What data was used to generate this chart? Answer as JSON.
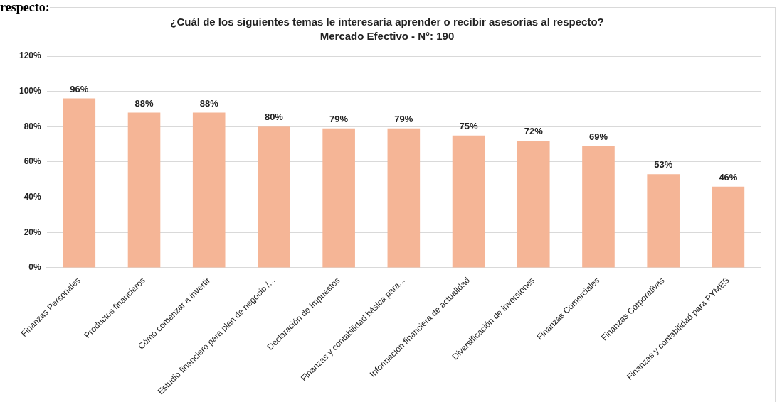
{
  "chart_data": {
    "type": "bar",
    "title": "¿Cuál de los siguientes temas le interesaría aprender o recibir asesorías al respecto?",
    "subtitle": "Mercado Efectivo - N°: 190",
    "annotations": [
      "respecto:"
    ],
    "categories": [
      "Finanzas Personales",
      "Productos financieros",
      "Cómo comenzar a invertir",
      "Estudio financiero para plan de negocio /...",
      "Declaración de Impuestos",
      "Finanzas y contabilidad básica para...",
      "Información financiera de actualidad",
      "Diversificación de inversiones",
      "Finanzas Comerciales",
      "Finanzas Corporativas",
      "Finanzas y contabilidad para PYMES"
    ],
    "values": [
      96,
      88,
      88,
      80,
      79,
      79,
      75,
      72,
      69,
      53,
      46
    ],
    "value_labels": [
      "96%",
      "88%",
      "88%",
      "80%",
      "79%",
      "79%",
      "75%",
      "72%",
      "69%",
      "53%",
      "46%"
    ],
    "color": "#f5b596",
    "ylim": [
      0,
      120
    ],
    "yticks": [
      {
        "value": 0,
        "label": "0%"
      },
      {
        "value": 20,
        "label": "20%"
      },
      {
        "value": 40,
        "label": "40%"
      },
      {
        "value": 60,
        "label": "60%"
      },
      {
        "value": 80,
        "label": "80%"
      },
      {
        "value": 100,
        "label": "100%"
      },
      {
        "value": 120,
        "label": "120%"
      }
    ],
    "grid": "y",
    "legend": false
  }
}
